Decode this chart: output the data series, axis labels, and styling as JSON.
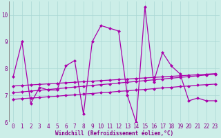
{
  "xlabel": "Windchill (Refroidissement éolien,°C)",
  "bg_color": "#cceee8",
  "grid_color": "#aad8d4",
  "line_color": "#aa00aa",
  "x_hours": [
    0,
    1,
    2,
    3,
    4,
    5,
    6,
    7,
    8,
    9,
    10,
    11,
    12,
    13,
    14,
    15,
    16,
    17,
    18,
    19,
    20,
    21,
    22,
    23
  ],
  "series1": [
    7.7,
    9.0,
    6.7,
    7.3,
    7.2,
    7.2,
    8.1,
    8.3,
    6.3,
    9.0,
    9.6,
    9.5,
    9.4,
    7.0,
    6.0,
    10.3,
    7.5,
    8.6,
    8.1,
    7.8,
    6.8,
    6.9,
    6.8,
    6.8
  ],
  "series2": [
    6.85,
    6.88,
    6.9,
    6.92,
    6.95,
    6.97,
    7.0,
    7.02,
    7.05,
    7.07,
    7.1,
    7.12,
    7.15,
    7.17,
    7.2,
    7.22,
    7.25,
    7.28,
    7.3,
    7.33,
    7.35,
    7.38,
    7.4,
    7.42
  ],
  "series3": [
    7.1,
    7.13,
    7.16,
    7.19,
    7.22,
    7.25,
    7.28,
    7.31,
    7.34,
    7.37,
    7.4,
    7.43,
    7.46,
    7.49,
    7.52,
    7.55,
    7.58,
    7.61,
    7.64,
    7.67,
    7.7,
    7.73,
    7.76,
    7.79
  ],
  "series4": [
    7.35,
    7.37,
    7.39,
    7.41,
    7.43,
    7.45,
    7.47,
    7.49,
    7.51,
    7.53,
    7.55,
    7.57,
    7.59,
    7.61,
    7.63,
    7.65,
    7.67,
    7.69,
    7.71,
    7.73,
    7.75,
    7.77,
    7.79,
    7.81
  ],
  "ylim_min": 6.0,
  "ylim_max": 10.5,
  "yticks": [
    6,
    7,
    8,
    9,
    10
  ],
  "xticks": [
    0,
    1,
    2,
    3,
    4,
    5,
    6,
    7,
    8,
    9,
    10,
    11,
    12,
    13,
    14,
    15,
    16,
    17,
    18,
    19,
    20,
    21,
    22,
    23
  ],
  "marker": "D",
  "markersize": 2.5,
  "linewidth": 0.9,
  "xlabel_fontsize": 5.5,
  "tick_fontsize": 5.5
}
